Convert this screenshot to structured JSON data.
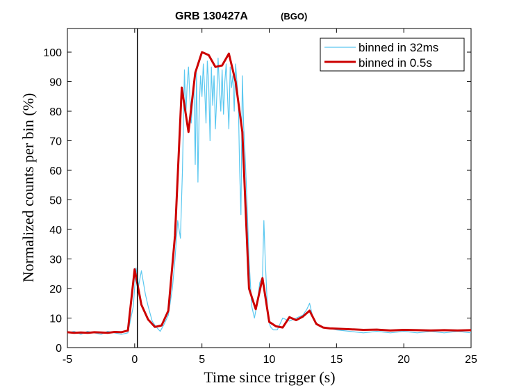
{
  "chart_data": {
    "type": "line",
    "title": "GRB 130427A",
    "subtitle": "(BGO)",
    "xlabel": "Time since trigger (s)",
    "ylabel": "Normalized counts per bin (%)",
    "xlim": [
      -5,
      25
    ],
    "ylim": [
      0,
      108
    ],
    "x_ticks": [
      -5,
      0,
      5,
      10,
      15,
      20,
      25
    ],
    "y_ticks": [
      0,
      10,
      20,
      30,
      40,
      50,
      60,
      70,
      80,
      90,
      100
    ],
    "grid": false,
    "legend_position": "top-right",
    "trigger_line_x": 0.2,
    "series": [
      {
        "name": "binned in 32ms",
        "color": "#5bc8f0",
        "x": [
          -5,
          -4.5,
          -4,
          -3.5,
          -3,
          -2.5,
          -2,
          -1.5,
          -1,
          -0.5,
          -0.1,
          0.1,
          0.3,
          0.5,
          0.8,
          1.0,
          1.3,
          1.6,
          1.9,
          2.2,
          2.5,
          2.8,
          3.0,
          3.2,
          3.4,
          3.55,
          3.7,
          3.8,
          3.9,
          4.0,
          4.1,
          4.2,
          4.3,
          4.4,
          4.5,
          4.6,
          4.7,
          4.8,
          4.9,
          5.0,
          5.1,
          5.2,
          5.3,
          5.4,
          5.5,
          5.6,
          5.7,
          5.8,
          5.9,
          6.0,
          6.1,
          6.2,
          6.3,
          6.4,
          6.5,
          6.6,
          6.7,
          6.8,
          6.9,
          7.0,
          7.1,
          7.2,
          7.3,
          7.4,
          7.5,
          7.6,
          7.7,
          7.8,
          7.9,
          8.0,
          8.1,
          8.2,
          8.3,
          8.5,
          8.7,
          8.9,
          9.1,
          9.3,
          9.5,
          9.6,
          9.7,
          9.9,
          10.1,
          10.3,
          10.6,
          11.0,
          11.5,
          12.0,
          12.5,
          12.8,
          13.0,
          13.2,
          13.5,
          14,
          15,
          16,
          17,
          18,
          19,
          20,
          21,
          22,
          23,
          24,
          25
        ],
        "y": [
          5,
          5.5,
          4.5,
          5.5,
          5,
          4.5,
          5.5,
          5,
          4.5,
          5,
          14,
          27,
          21,
          26,
          18,
          14,
          9,
          7,
          5.5,
          8,
          11,
          20,
          30,
          43,
          37,
          60,
          94,
          78,
          89,
          95,
          85,
          76,
          83,
          90,
          62,
          93,
          56,
          82,
          92,
          85,
          96,
          88,
          76,
          97,
          89,
          70,
          95,
          82,
          92,
          74,
          85,
          98,
          88,
          80,
          94,
          79,
          90,
          96,
          85,
          74,
          95,
          88,
          92,
          80,
          96,
          90,
          84,
          60,
          45,
          92,
          75,
          66,
          55,
          30,
          14,
          10,
          15,
          22,
          24,
          43,
          30,
          10,
          7,
          6,
          6,
          10,
          9,
          10,
          11,
          13,
          15,
          11,
          8,
          7,
          6,
          5.5,
          5,
          5.5,
          5,
          5.5,
          5,
          5.5,
          5,
          5.5,
          5
        ]
      },
      {
        "name": "binned in 0.5s",
        "color": "#cc0000",
        "x": [
          -5,
          -4.5,
          -4,
          -3.5,
          -3,
          -2.5,
          -2,
          -1.5,
          -1,
          -0.5,
          0.0,
          0.5,
          1.0,
          1.5,
          2.0,
          2.5,
          3.0,
          3.5,
          4.0,
          4.5,
          5.0,
          5.5,
          6.0,
          6.5,
          7.0,
          7.5,
          8.0,
          8.5,
          9.0,
          9.5,
          10.0,
          10.5,
          11.0,
          11.5,
          12.0,
          12.5,
          13.0,
          13.5,
          14.0,
          14.5,
          15,
          16,
          17,
          18,
          19,
          20,
          21,
          22,
          23,
          24,
          25
        ],
        "y": [
          5.2,
          5.0,
          5.1,
          5.0,
          5.2,
          5.1,
          5.0,
          5.3,
          5.2,
          5.8,
          26.5,
          14.5,
          9.5,
          7.0,
          7.5,
          12.5,
          38,
          88,
          73,
          93,
          100,
          99,
          95,
          95.5,
          99.5,
          90,
          73,
          20,
          13,
          23.5,
          8.7,
          7.2,
          6.8,
          10.3,
          9.3,
          10.5,
          12.5,
          8.0,
          6.8,
          6.5,
          6.4,
          6.2,
          6.0,
          6.1,
          5.8,
          6.0,
          5.9,
          5.8,
          5.9,
          5.8,
          5.9
        ]
      }
    ]
  }
}
